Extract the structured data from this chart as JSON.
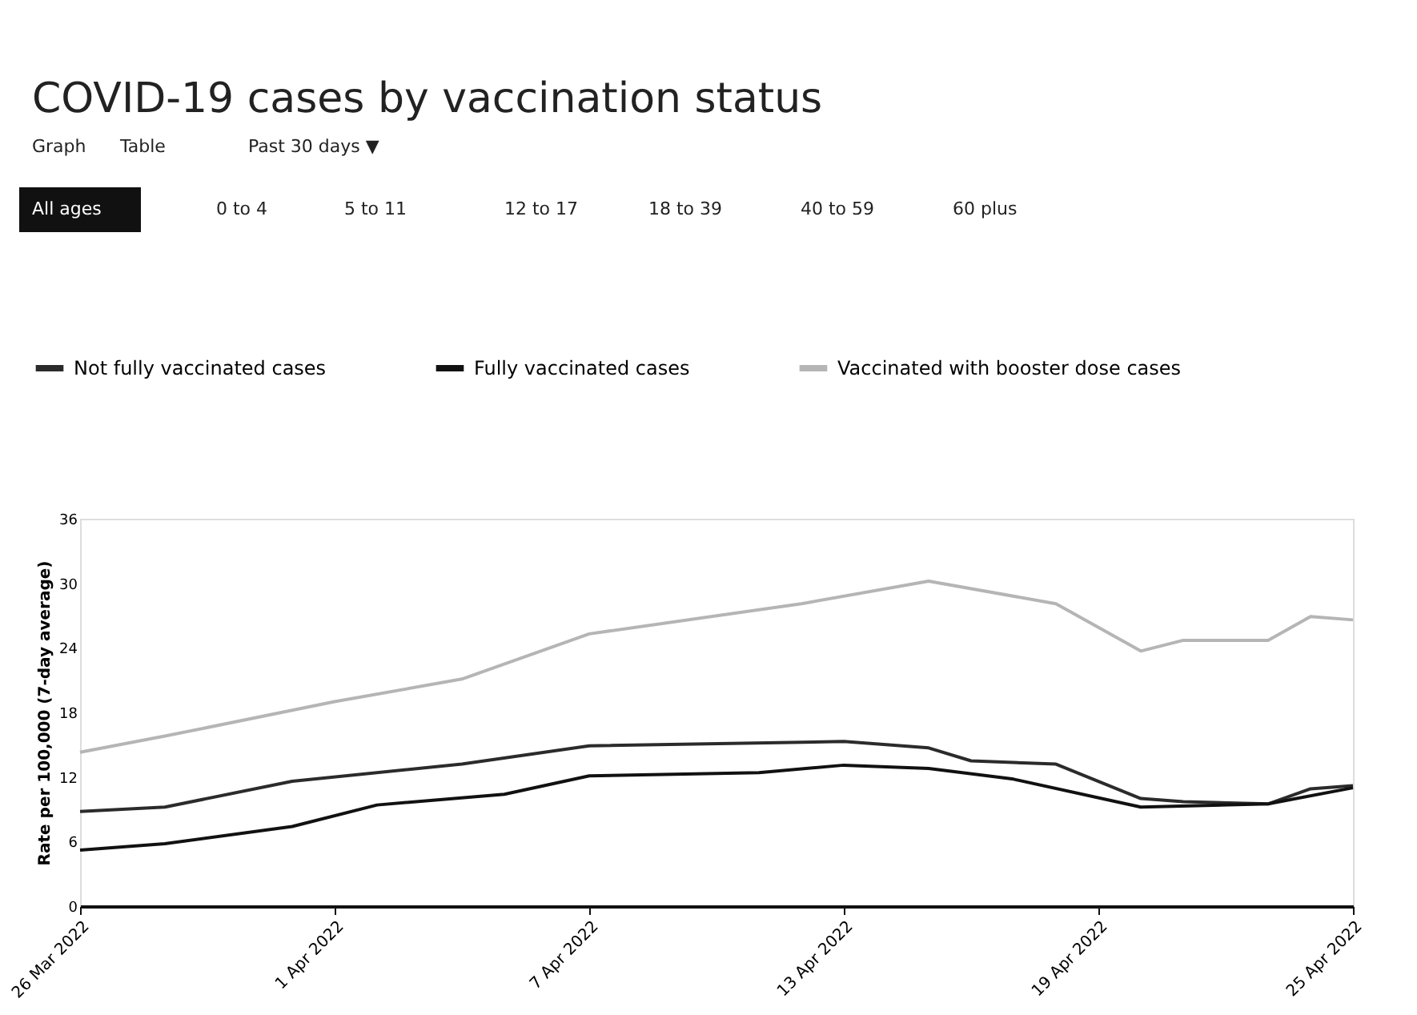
{
  "chart_data": {
    "type": "line",
    "title": "COVID-19 cases by vaccination status",
    "annotations": [
      "Graph",
      "Table",
      "Past 30 days ▼",
      "All ages",
      "0 to 4",
      "5 to 11",
      "12 to 17",
      "18 to 39",
      "40 to 59",
      "60 plus"
    ],
    "ylabel": "Rate per 100,000 (7-day average)",
    "series": [
      {
        "name": "Not fully vaccinated cases",
        "color": "#2b2b2b",
        "x": [
          "2022-03-26",
          "2022-03-28",
          "2022-03-31",
          "2022-04-04",
          "2022-04-07",
          "2022-04-13",
          "2022-04-15",
          "2022-04-16",
          "2022-04-18",
          "2022-04-20",
          "2022-04-21",
          "2022-04-23",
          "2022-04-24",
          "2022-04-25"
        ],
        "values": [
          8.8,
          9.2,
          11.6,
          13.2,
          14.9,
          15.3,
          14.7,
          13.5,
          13.2,
          10.0,
          9.7,
          9.5,
          10.9,
          11.2
        ]
      },
      {
        "name": "Fully vaccinated cases",
        "color": "#111111",
        "x": [
          "2022-03-26",
          "2022-03-28",
          "2022-03-31",
          "2022-04-02",
          "2022-04-05",
          "2022-04-07",
          "2022-04-11",
          "2022-04-13",
          "2022-04-15",
          "2022-04-17",
          "2022-04-20",
          "2022-04-23",
          "2022-04-25"
        ],
        "values": [
          5.2,
          5.8,
          7.4,
          9.4,
          10.4,
          12.1,
          12.4,
          13.1,
          12.8,
          11.8,
          9.2,
          9.5,
          11.0
        ]
      },
      {
        "name": "Vaccinated with booster dose cases",
        "color": "#b5b5b5",
        "x": [
          "2022-03-26",
          "2022-03-28",
          "2022-04-01",
          "2022-04-04",
          "2022-04-07",
          "2022-04-12",
          "2022-04-15",
          "2022-04-18",
          "2022-04-20",
          "2022-04-21",
          "2022-04-23",
          "2022-04-24",
          "2022-04-25"
        ],
        "values": [
          14.3,
          15.8,
          19.0,
          21.1,
          25.3,
          28.1,
          30.2,
          28.1,
          23.7,
          24.7,
          24.7,
          26.9,
          26.6
        ]
      }
    ],
    "xlim": [
      "2022-03-26",
      "2022-04-25"
    ],
    "xticks": [
      {
        "value": "2022-03-26",
        "label": "26 Mar 2022"
      },
      {
        "value": "2022-04-01",
        "label": "1 Apr 2022"
      },
      {
        "value": "2022-04-07",
        "label": "7 Apr 2022"
      },
      {
        "value": "2022-04-13",
        "label": "13 Apr 2022"
      },
      {
        "value": "2022-04-19",
        "label": "19 Apr 2022"
      },
      {
        "value": "2022-04-25",
        "label": "25 Apr 2022"
      }
    ],
    "ylim": [
      0,
      36
    ],
    "yticks": [
      0,
      6,
      12,
      18,
      24,
      30,
      36
    ],
    "grid": false,
    "legend": "top",
    "marker": "none",
    "line_style": "solid"
  }
}
